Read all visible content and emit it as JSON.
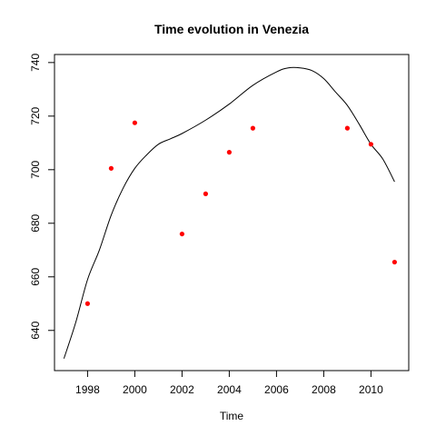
{
  "chart_data": {
    "type": "scatter",
    "title": "Time evolution in Venezia",
    "xlabel": "Time",
    "ylabel": "",
    "xlim": [
      1996.6,
      2011.6
    ],
    "ylim": [
      625,
      743
    ],
    "x_ticks": [
      "1998",
      "2000",
      "2002",
      "2004",
      "2006",
      "2008",
      "2010"
    ],
    "y_ticks": [
      "640",
      "660",
      "680",
      "700",
      "720",
      "740"
    ],
    "grid": false,
    "legend": "none",
    "point_color": "#ff0000",
    "line_color": "#000000",
    "series": [
      {
        "kind": "points",
        "x": [
          1998,
          1999,
          2000,
          2002,
          2003,
          2004,
          2005,
          2009,
          2010,
          2011
        ],
        "y": [
          650,
          700.5,
          717.5,
          676,
          691,
          706.5,
          715.5,
          715.5,
          709.5,
          665.5
        ]
      },
      {
        "kind": "smooth-line",
        "x": [
          1997,
          1997.5,
          1998,
          1998.5,
          1999,
          1999.5,
          2000,
          2000.5,
          2001,
          2001.5,
          2002,
          2003,
          2004,
          2005,
          2006,
          2006.5,
          2007,
          2007.5,
          2008,
          2008.5,
          2009,
          2009.5,
          2010,
          2010.5,
          2011
        ],
        "y": [
          629.5,
          643,
          659,
          670,
          683,
          693,
          700.5,
          705.5,
          709.5,
          711.5,
          713.5,
          718.5,
          724.5,
          731.5,
          736.5,
          738,
          738,
          737,
          734,
          729,
          724,
          717,
          709.5,
          704,
          695.5
        ]
      }
    ]
  }
}
